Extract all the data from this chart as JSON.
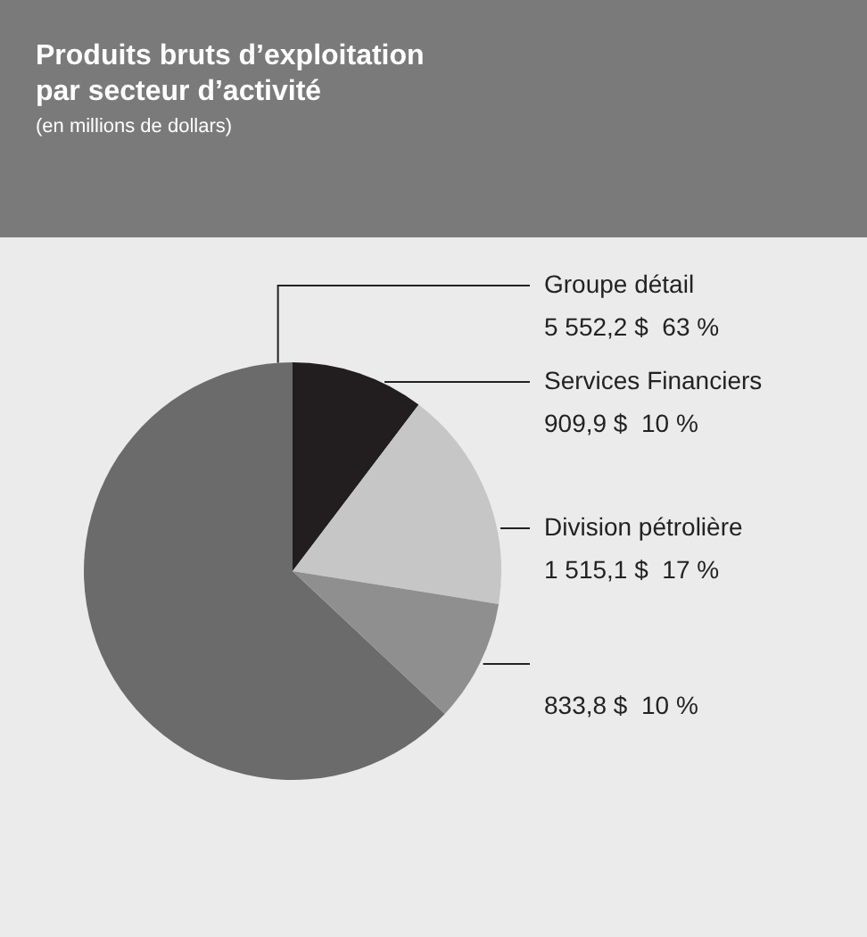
{
  "chart_data": {
    "type": "pie",
    "title": "Produits bruts d’exploitation\npar secteur d’activité",
    "subtitle": "(en millions de dollars)",
    "categories": [
      "Groupe détail",
      "Services Financiers",
      "Division pétrolière",
      null
    ],
    "values": [
      5552.2,
      909.9,
      1515.1,
      833.8
    ],
    "colors": [
      "#6b6b6b",
      "#221e1f",
      "#c6c6c6",
      "#8f8f8f"
    ],
    "value_labels": [
      "5 552,2 $  63 %",
      "909,9 $  10 %",
      "1 515,1 $  17 %",
      "833,8 $  10 %"
    ],
    "legend": false
  }
}
